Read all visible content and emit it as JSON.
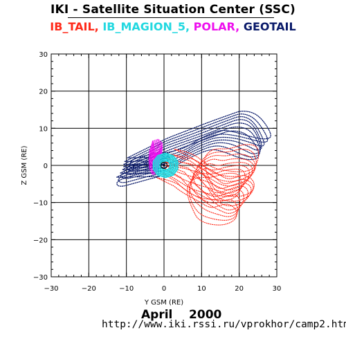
{
  "header": {
    "title": "IKI - Satellite Situation Center (SSC)"
  },
  "footer": {
    "date": "April    2000",
    "url": "http://www.iki.rssi.ru/vprokhor/camp2.htm"
  },
  "colors": {
    "IB_TAIL": "#ff2a1a",
    "IB_MAGION_5": "#22d8e0",
    "POLAR": "#ee11ee",
    "GEOTAIL": "#0a1a6a"
  },
  "chart_data": {
    "type": "scatter",
    "title": "IKI - Satellite Situation Center (SSC)",
    "xlabel": "Y GSM (RE)",
    "ylabel": "Z GSM (RE)",
    "xlim": [
      -30,
      30
    ],
    "ylim": [
      -30,
      30
    ],
    "grid": true,
    "legend_placement": "top",
    "x_ticks": [
      "-30",
      "-20",
      "-10",
      "0",
      "10",
      "20",
      "30"
    ],
    "y_ticks": [
      "-30",
      "-20",
      "-10",
      "0",
      "10",
      "20",
      "30"
    ],
    "series": [
      {
        "name": "IB_TAIL",
        "color": "#ff2a1a",
        "marker": "dotted-orbit-traces",
        "points": [
          [
            0.5,
            0.5
          ],
          [
            3,
            -0.5
          ],
          [
            6,
            -1.5
          ],
          [
            9,
            -3
          ],
          [
            12,
            -4.5
          ],
          [
            15,
            -5.5
          ],
          [
            18,
            -6
          ],
          [
            21,
            -5
          ],
          [
            23,
            -3
          ],
          [
            23.5,
            -0.5
          ],
          [
            22,
            1.5
          ],
          [
            18,
            1.5
          ],
          [
            15,
            0.5
          ],
          [
            12,
            1
          ],
          [
            10,
            0
          ],
          [
            8,
            -2
          ],
          [
            8,
            -5
          ],
          [
            10,
            -8
          ],
          [
            12,
            -10.5
          ],
          [
            15,
            -12
          ],
          [
            18,
            -12.5
          ],
          [
            21,
            -11
          ],
          [
            22,
            -8
          ],
          [
            20,
            -6
          ],
          [
            17,
            -7
          ],
          [
            14,
            -8
          ],
          [
            11,
            -6
          ],
          [
            7,
            -3
          ],
          [
            4,
            0
          ]
        ]
      },
      {
        "name": "IB_MAGION_5",
        "color": "#22d8e0",
        "marker": "dotted-orbit-traces",
        "points": [
          [
            0,
            3.2
          ],
          [
            2,
            2.6
          ],
          [
            3.2,
            1
          ],
          [
            3.2,
            -1
          ],
          [
            2,
            -2.6
          ],
          [
            0,
            -3.2
          ],
          [
            -2,
            -2.6
          ],
          [
            -3.2,
            -1
          ],
          [
            -3.2,
            1
          ],
          [
            -2,
            2.6
          ]
        ]
      },
      {
        "name": "POLAR",
        "color": "#ee11ee",
        "marker": "dotted-orbit-traces",
        "points": [
          [
            -3,
            6.5
          ],
          [
            -1.5,
            7
          ],
          [
            -0.5,
            6
          ],
          [
            -0.5,
            4
          ],
          [
            -1,
            2
          ],
          [
            -1.5,
            0
          ],
          [
            -2,
            -2
          ],
          [
            -3,
            -2.5
          ],
          [
            -3.8,
            -1
          ],
          [
            -4,
            1.5
          ],
          [
            -3.8,
            4
          ]
        ]
      },
      {
        "name": "GEOTAIL",
        "color": "#0a1a6a",
        "marker": "dotted-orbit-traces",
        "points": [
          [
            -11,
            -0.5
          ],
          [
            -9,
            0.5
          ],
          [
            -6,
            2
          ],
          [
            -3,
            3.5
          ],
          [
            0,
            5
          ],
          [
            4,
            6.5
          ],
          [
            8,
            8
          ],
          [
            12,
            9.5
          ],
          [
            16,
            11
          ],
          [
            20,
            12.5
          ],
          [
            24,
            11
          ],
          [
            27,
            5
          ],
          [
            25,
            4
          ],
          [
            22,
            5
          ],
          [
            18,
            6.5
          ],
          [
            14,
            7
          ],
          [
            10,
            5.5
          ],
          [
            7,
            4
          ],
          [
            4,
            2
          ],
          [
            0,
            1
          ],
          [
            -4,
            0.5
          ],
          [
            -8,
            -0.5
          ],
          [
            -11,
            -1.5
          ],
          [
            -10,
            -3
          ],
          [
            -6,
            -2
          ],
          [
            -2,
            -1
          ],
          [
            2,
            0
          ]
        ]
      }
    ]
  }
}
